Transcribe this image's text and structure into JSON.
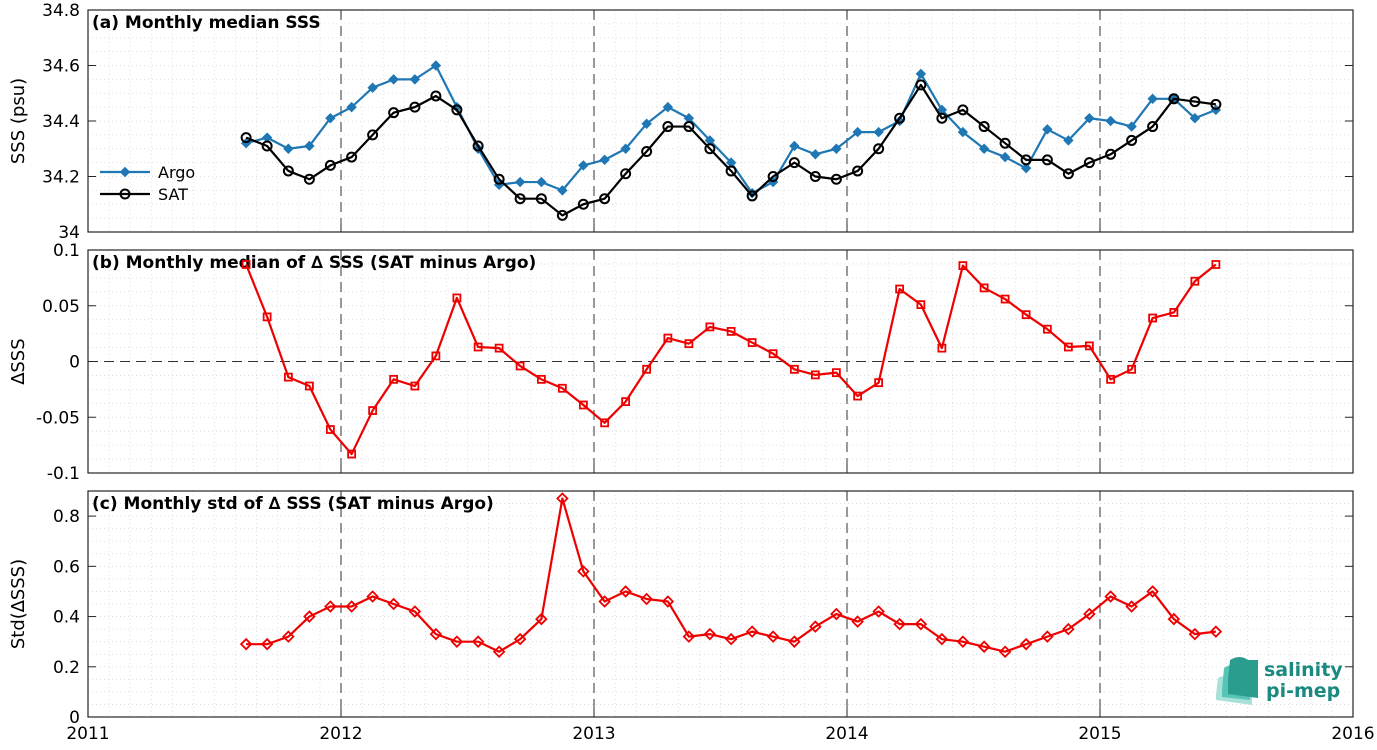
{
  "chart_data": [
    {
      "type": "line",
      "title": "(a) Monthly median SSS",
      "ylabel": "SSS (psu)",
      "xlabel": "",
      "xlim": [
        2011,
        2016
      ],
      "ylim": [
        34.0,
        34.8
      ],
      "yticks": [
        34,
        34.2,
        34.4,
        34.6,
        34.8
      ],
      "ytick_labels": [
        "34",
        "34.2",
        "34.4",
        "34.6",
        "34.8"
      ],
      "xticks": [
        2011,
        2012,
        2013,
        2014,
        2015,
        2016
      ],
      "xtick_labels": [
        "",
        "",
        "",
        "",
        "",
        ""
      ],
      "grid": "dotted minor grid, dashed lines at year boundaries",
      "legend_position": "left",
      "x": [
        2011.625,
        2011.708,
        2011.792,
        2011.875,
        2011.958,
        2012.042,
        2012.125,
        2012.208,
        2012.292,
        2012.375,
        2012.458,
        2012.542,
        2012.625,
        2012.708,
        2012.792,
        2012.875,
        2012.958,
        2013.042,
        2013.125,
        2013.208,
        2013.292,
        2013.375,
        2013.458,
        2013.542,
        2013.625,
        2013.708,
        2013.792,
        2013.875,
        2013.958,
        2014.042,
        2014.125,
        2014.208,
        2014.292,
        2014.375,
        2014.458,
        2014.542,
        2014.625,
        2014.708,
        2014.792,
        2014.875,
        2014.958,
        2015.042,
        2015.125,
        2015.208,
        2015.292,
        2015.375,
        2015.458
      ],
      "series": [
        {
          "name": "Argo",
          "color": "#1f77b4",
          "marker": "diamond",
          "values": [
            34.32,
            34.34,
            34.3,
            34.31,
            34.41,
            34.45,
            34.52,
            34.55,
            34.55,
            34.6,
            34.45,
            34.3,
            34.17,
            34.18,
            34.18,
            34.15,
            34.24,
            34.26,
            34.3,
            34.39,
            34.45,
            34.41,
            34.33,
            34.25,
            34.14,
            34.18,
            34.31,
            34.28,
            34.3,
            34.36,
            34.36,
            34.4,
            34.57,
            34.44,
            34.36,
            34.3,
            34.27,
            34.23,
            34.37,
            34.33,
            34.41,
            34.4,
            34.38,
            34.48,
            34.48,
            34.41,
            34.44
          ]
        },
        {
          "name": "SAT",
          "color": "#000000",
          "marker": "circle",
          "values": [
            34.34,
            34.31,
            34.22,
            34.19,
            34.24,
            34.27,
            34.35,
            34.43,
            34.45,
            34.49,
            34.44,
            34.31,
            34.19,
            34.12,
            34.12,
            34.06,
            34.1,
            34.12,
            34.21,
            34.29,
            34.38,
            34.38,
            34.3,
            34.22,
            34.13,
            34.2,
            34.25,
            34.2,
            34.19,
            34.22,
            34.3,
            34.41,
            34.53,
            34.41,
            34.44,
            34.38,
            34.32,
            34.26,
            34.26,
            34.21,
            34.25,
            34.28,
            34.33,
            34.38,
            34.48,
            34.47,
            34.46
          ]
        }
      ]
    },
    {
      "type": "line",
      "title": "(b) Monthly median of ∆ SSS (SAT minus Argo)",
      "ylabel": "∆SSS",
      "xlabel": "",
      "xlim": [
        2011,
        2016
      ],
      "ylim": [
        -0.1,
        0.1
      ],
      "yticks": [
        -0.1,
        -0.05,
        0,
        0.05,
        0.1
      ],
      "ytick_labels": [
        "-0.1",
        "-0.05",
        "0",
        "0.05",
        "0.1"
      ],
      "xticks": [
        2011,
        2012,
        2013,
        2014,
        2015,
        2016
      ],
      "xtick_labels": [
        "",
        "",
        "",
        "",
        "",
        ""
      ],
      "grid": "dotted minor grid, dashed lines at year boundaries, dashed zero line",
      "x": [
        2011.625,
        2011.708,
        2011.792,
        2011.875,
        2011.958,
        2012.042,
        2012.125,
        2012.208,
        2012.292,
        2012.375,
        2012.458,
        2012.542,
        2012.625,
        2012.708,
        2012.792,
        2012.875,
        2012.958,
        2013.042,
        2013.125,
        2013.208,
        2013.292,
        2013.375,
        2013.458,
        2013.542,
        2013.625,
        2013.708,
        2013.792,
        2013.875,
        2013.958,
        2014.042,
        2014.125,
        2014.208,
        2014.292,
        2014.375,
        2014.458,
        2014.542,
        2014.625,
        2014.708,
        2014.792,
        2014.875,
        2014.958,
        2015.042,
        2015.125,
        2015.208,
        2015.292,
        2015.375,
        2015.458
      ],
      "series": [
        {
          "color": "#ee0000",
          "marker": "square",
          "values": [
            0.087,
            0.04,
            -0.014,
            -0.022,
            -0.061,
            -0.083,
            -0.044,
            -0.016,
            -0.022,
            0.005,
            0.057,
            0.013,
            0.012,
            -0.004,
            -0.016,
            -0.024,
            -0.039,
            -0.055,
            -0.036,
            -0.007,
            0.021,
            0.016,
            0.031,
            0.027,
            0.017,
            0.007,
            -0.007,
            -0.012,
            -0.01,
            -0.031,
            -0.019,
            0.065,
            0.051,
            0.012,
            0.086,
            0.066,
            0.056,
            0.042,
            0.029,
            0.013,
            0.014,
            -0.016,
            -0.007,
            0.039,
            0.044,
            0.072,
            0.087
          ]
        }
      ]
    },
    {
      "type": "line",
      "title": "(c) Monthly std of ∆ SSS (SAT minus Argo)",
      "ylabel": "Std(∆SSS)",
      "xlabel": "",
      "xlim": [
        2011,
        2016
      ],
      "ylim": [
        0,
        0.9
      ],
      "yticks": [
        0,
        0.2,
        0.4,
        0.6,
        0.8
      ],
      "ytick_labels": [
        "0",
        "0.2",
        "0.4",
        "0.6",
        "0.8"
      ],
      "xticks": [
        2011,
        2012,
        2013,
        2014,
        2015,
        2016
      ],
      "xtick_labels": [
        "2011",
        "2012",
        "2013",
        "2014",
        "2015",
        "2016"
      ],
      "grid": "dotted minor grid, dashed lines at year boundaries",
      "x": [
        2011.625,
        2011.708,
        2011.792,
        2011.875,
        2011.958,
        2012.042,
        2012.125,
        2012.208,
        2012.292,
        2012.375,
        2012.458,
        2012.542,
        2012.625,
        2012.708,
        2012.792,
        2012.875,
        2012.958,
        2013.042,
        2013.125,
        2013.208,
        2013.292,
        2013.375,
        2013.458,
        2013.542,
        2013.625,
        2013.708,
        2013.792,
        2013.875,
        2013.958,
        2014.042,
        2014.125,
        2014.208,
        2014.292,
        2014.375,
        2014.458,
        2014.542,
        2014.625,
        2014.708,
        2014.792,
        2014.875,
        2014.958,
        2015.042,
        2015.125,
        2015.208,
        2015.292,
        2015.375,
        2015.458
      ],
      "series": [
        {
          "color": "#ee0000",
          "marker": "diamond-open",
          "values": [
            0.29,
            0.29,
            0.32,
            0.4,
            0.44,
            0.44,
            0.48,
            0.45,
            0.42,
            0.33,
            0.3,
            0.3,
            0.26,
            0.31,
            0.39,
            0.87,
            0.58,
            0.46,
            0.5,
            0.47,
            0.46,
            0.32,
            0.33,
            0.31,
            0.34,
            0.32,
            0.3,
            0.36,
            0.41,
            0.38,
            0.42,
            0.37,
            0.37,
            0.31,
            0.3,
            0.28,
            0.26,
            0.29,
            0.32,
            0.35,
            0.41,
            0.48,
            0.44,
            0.5,
            0.39,
            0.33,
            0.34
          ]
        }
      ]
    }
  ],
  "logo": {
    "line1": "salinity",
    "line2": "pi-mep",
    "colors": [
      "#2a9d8f",
      "#57c4b5",
      "#a8e1d8"
    ]
  }
}
